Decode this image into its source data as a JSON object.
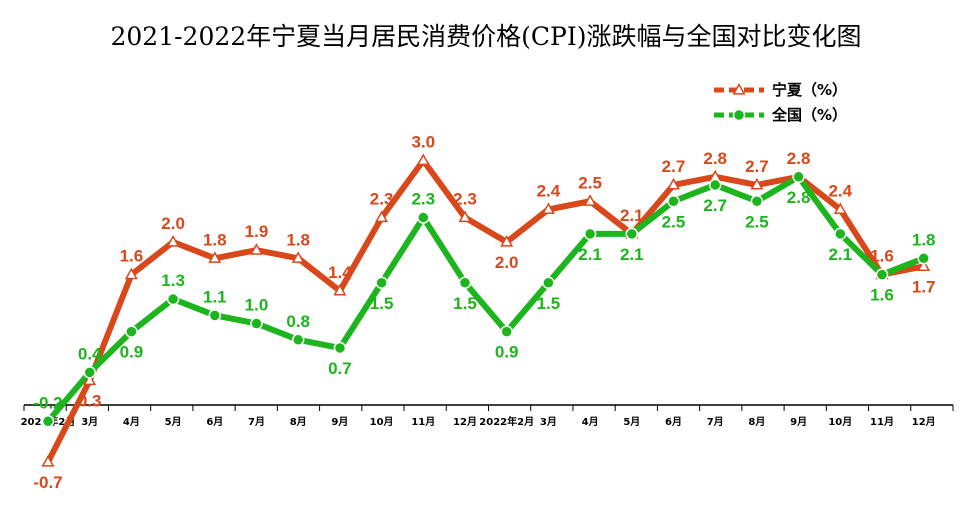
{
  "chart_data": {
    "type": "line",
    "title": "2021-2022年宁夏当月居民消费价格(CPI)涨跌幅与全国对比变化图",
    "categories": [
      "2021年2月",
      "3月",
      "4月",
      "5月",
      "6月",
      "7月",
      "8月",
      "9月",
      "10月",
      "11月",
      "12月",
      "2022年2月",
      "3月",
      "4月",
      "5月",
      "6月",
      "7月",
      "8月",
      "9月",
      "10月",
      "11月",
      "12月"
    ],
    "series": [
      {
        "name": "宁夏（%）",
        "color": "#D9481B",
        "marker": "triangle",
        "values": [
          -0.7,
          0.3,
          1.6,
          2.0,
          1.8,
          1.9,
          1.8,
          1.4,
          2.3,
          3.0,
          2.3,
          2.0,
          2.4,
          2.5,
          2.1,
          2.7,
          2.8,
          2.7,
          2.8,
          2.4,
          1.6,
          1.7
        ]
      },
      {
        "name": "全国（%）",
        "color": "#1DB51D",
        "marker": "circle",
        "values": [
          -0.2,
          0.4,
          0.9,
          1.3,
          1.1,
          1.0,
          0.8,
          0.7,
          1.5,
          2.3,
          1.5,
          0.9,
          1.5,
          2.1,
          2.1,
          2.5,
          2.7,
          2.5,
          2.8,
          2.1,
          1.6,
          1.8
        ]
      }
    ],
    "legend_position": "top-right",
    "grid": false,
    "ylim": [
      -1.0,
      3.5
    ]
  }
}
